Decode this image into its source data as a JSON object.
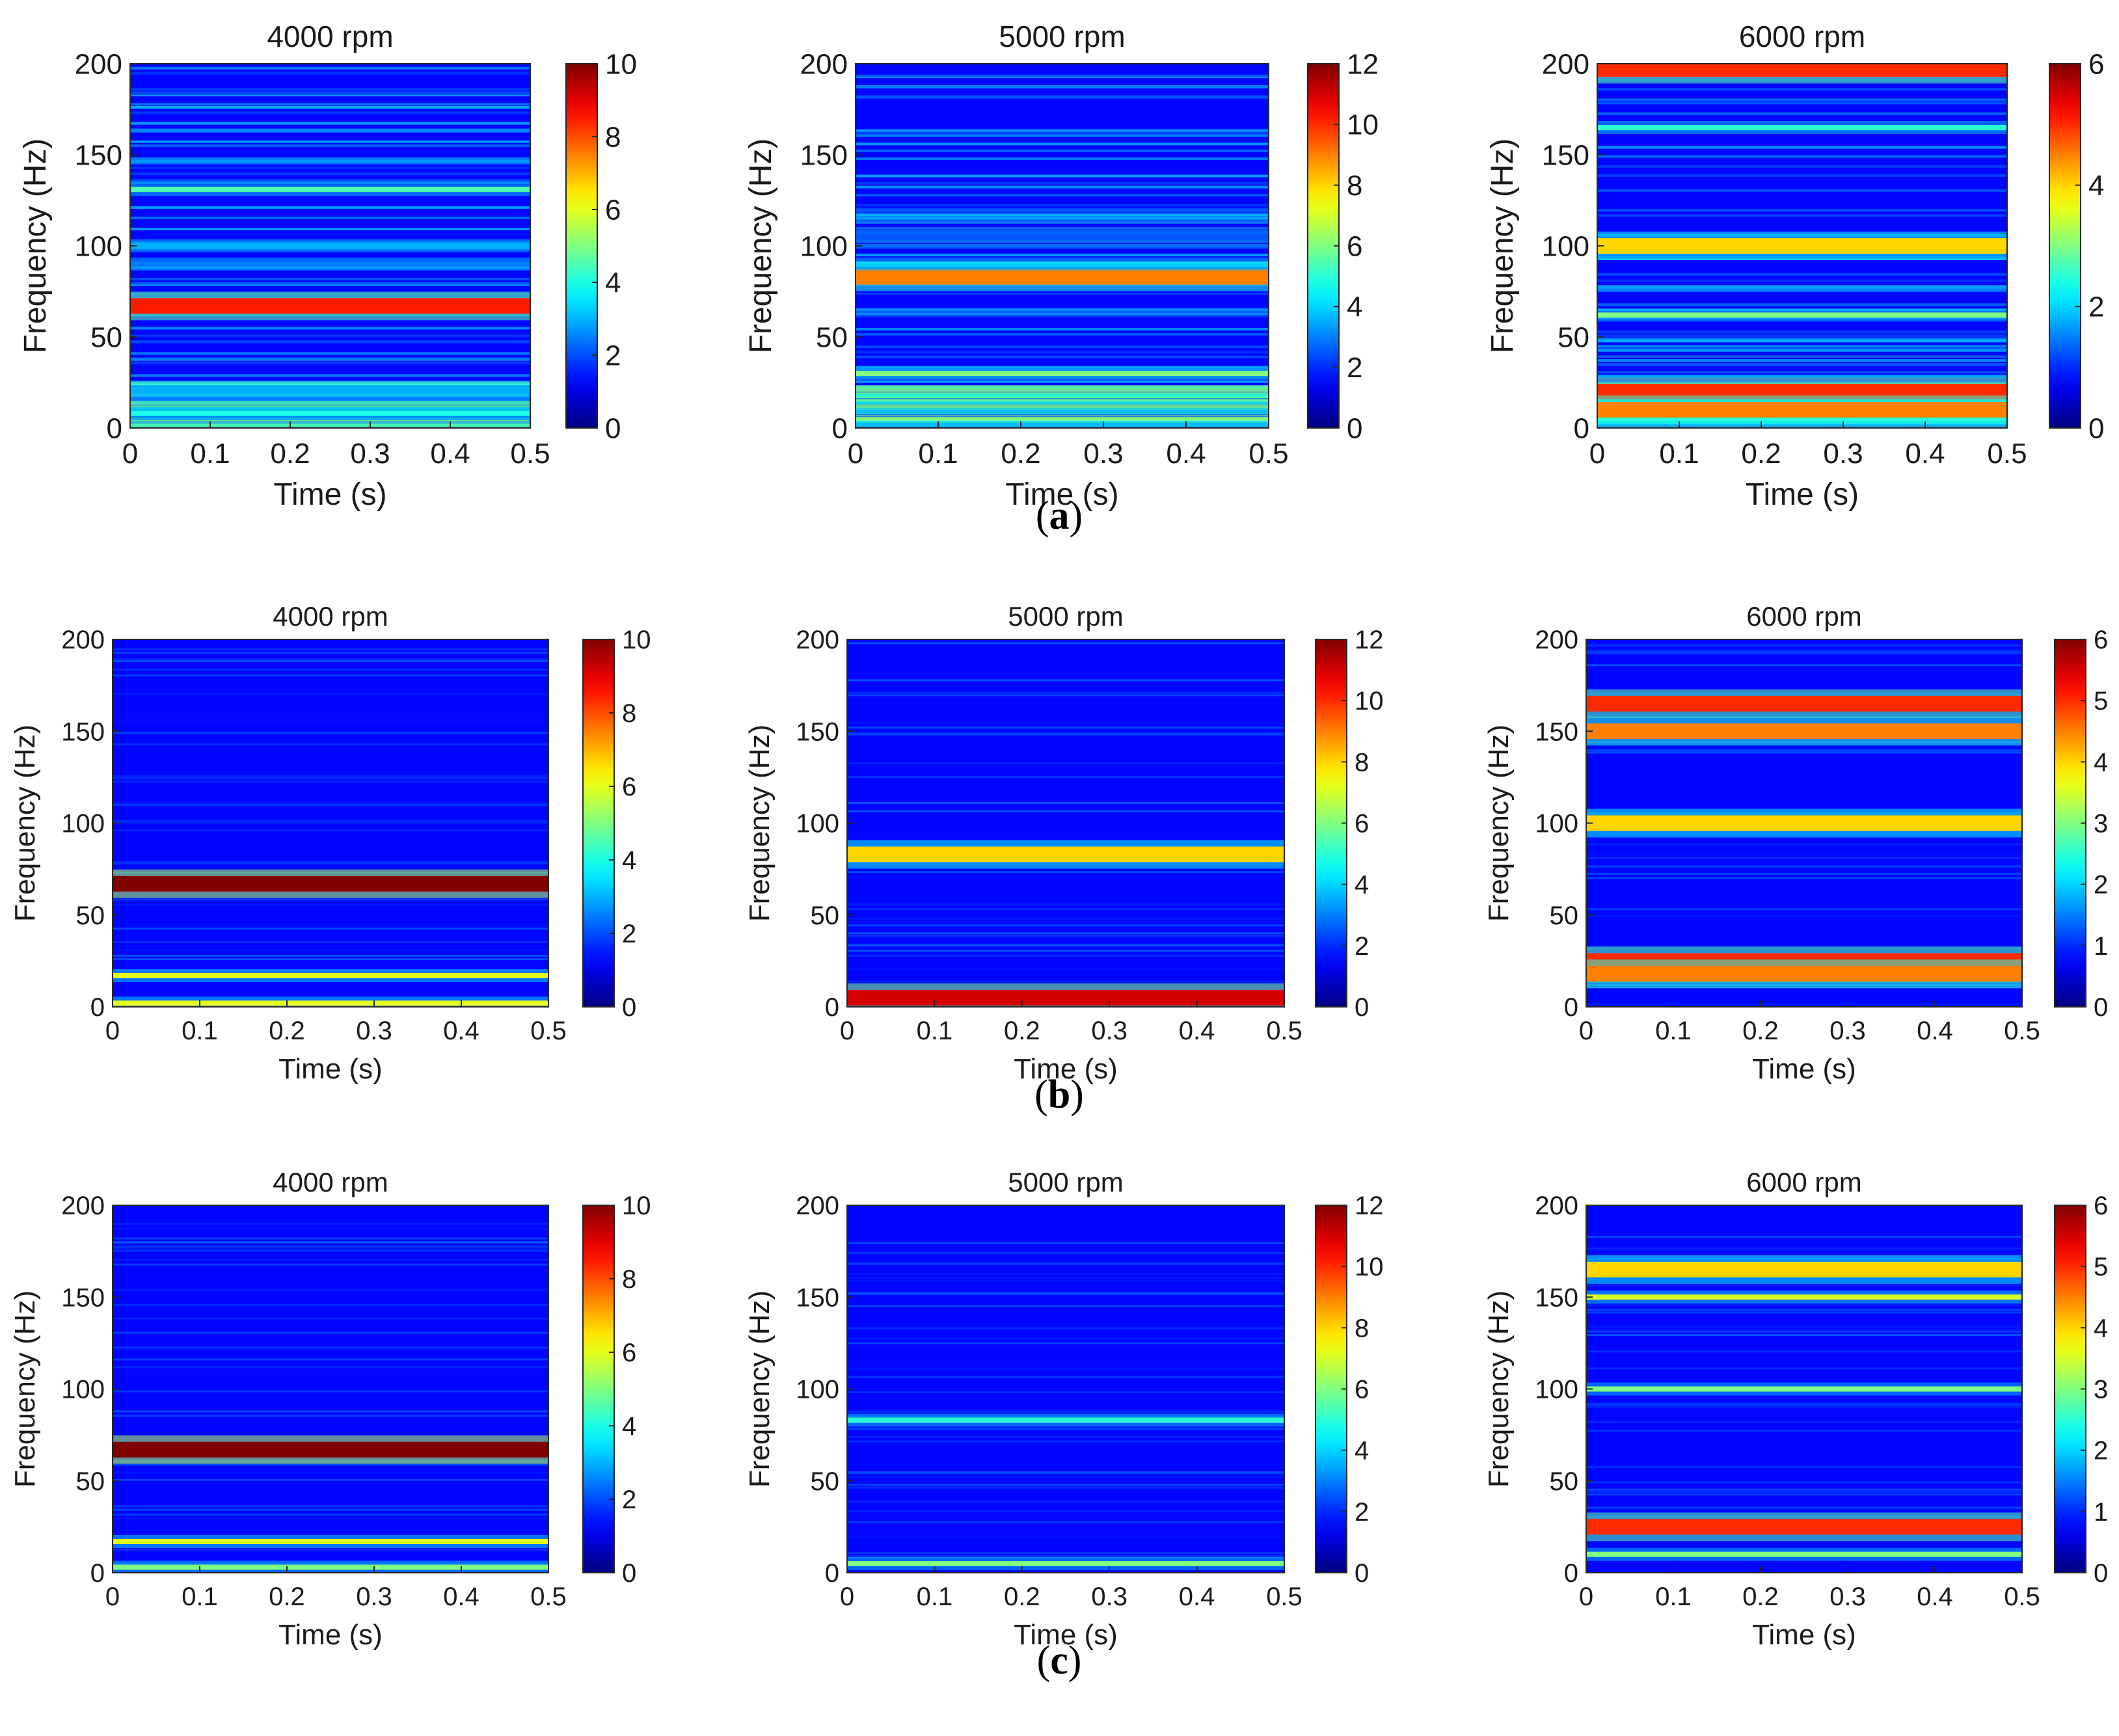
{
  "figure": {
    "rows": [
      {
        "label": "a",
        "panels": [
          {
            "title": "4000 rpm",
            "clim": [
              0,
              10
            ]
          },
          {
            "title": "5000 rpm",
            "clim": [
              0,
              12
            ]
          },
          {
            "title": "6000 rpm",
            "clim": [
              0,
              6
            ]
          }
        ]
      },
      {
        "label": "b",
        "panels": [
          {
            "title": "4000 rpm",
            "clim": [
              0,
              10
            ]
          },
          {
            "title": "5000 rpm",
            "clim": [
              0,
              12
            ]
          },
          {
            "title": "6000 rpm",
            "clim": [
              0,
              6
            ]
          }
        ]
      },
      {
        "label": "c",
        "panels": [
          {
            "title": "4000 rpm",
            "clim": [
              0,
              10
            ]
          },
          {
            "title": "5000 rpm",
            "clim": [
              0,
              12
            ]
          },
          {
            "title": "6000 rpm",
            "clim": [
              0,
              6
            ]
          }
        ]
      }
    ]
  },
  "chart_data": [
    {
      "type": "heatmap",
      "row": "a",
      "title": "4000 rpm",
      "xlabel": "Time (s)",
      "ylabel": "Frequency (Hz)",
      "xlim": [
        0,
        0.5
      ],
      "ylim": [
        0,
        200
      ],
      "xticks": [
        "0",
        "0.1",
        "0.2",
        "0.3",
        "0.4",
        "0.5"
      ],
      "yticks": [
        "0",
        "50",
        "100",
        "150",
        "200"
      ],
      "colorbar_ticks": [
        "0",
        "2",
        "4",
        "6",
        "8",
        "10"
      ],
      "colorbar_range": [
        0,
        10
      ],
      "bands": [
        {
          "freq": 67,
          "intensity": 8.5
        },
        {
          "freq": 131,
          "intensity": 4.5
        },
        {
          "freq": 100,
          "intensity": 3
        },
        {
          "freq": 90,
          "intensity": 2.5
        },
        {
          "freq": 20,
          "intensity": 3
        },
        {
          "freq": 8,
          "intensity": 4
        }
      ]
    },
    {
      "type": "heatmap",
      "row": "a",
      "title": "5000 rpm",
      "xlabel": "Time (s)",
      "ylabel": "Frequency (Hz)",
      "xlim": [
        0,
        0.5
      ],
      "ylim": [
        0,
        200
      ],
      "xticks": [
        "0",
        "0.1",
        "0.2",
        "0.3",
        "0.4",
        "0.5"
      ],
      "yticks": [
        "0",
        "50",
        "100",
        "150",
        "200"
      ],
      "colorbar_ticks": [
        "0",
        "2",
        "4",
        "6",
        "8",
        "10",
        "12"
      ],
      "colorbar_range": [
        0,
        12
      ],
      "bands": [
        {
          "freq": 83,
          "intensity": 9
        },
        {
          "freq": 90,
          "intensity": 4
        },
        {
          "freq": 30,
          "intensity": 6
        },
        {
          "freq": 105,
          "intensity": 2.5
        }
      ]
    },
    {
      "type": "heatmap",
      "row": "a",
      "title": "6000 rpm",
      "xlabel": "Time (s)",
      "ylabel": "Frequency (Hz)",
      "xlim": [
        0,
        0.5
      ],
      "ylim": [
        0,
        200
      ],
      "xticks": [
        "0",
        "0.1",
        "0.2",
        "0.3",
        "0.4",
        "0.5"
      ],
      "yticks": [
        "0",
        "50",
        "100",
        "150",
        "200"
      ],
      "colorbar_ticks": [
        "0",
        "2",
        "4",
        "6"
      ],
      "colorbar_range": [
        0,
        6
      ],
      "bands": [
        {
          "freq": 197,
          "intensity": 5
        },
        {
          "freq": 100,
          "intensity": 4
        },
        {
          "freq": 165,
          "intensity": 2.5
        },
        {
          "freq": 62,
          "intensity": 3
        },
        {
          "freq": 20,
          "intensity": 5
        },
        {
          "freq": 10,
          "intensity": 4.5
        }
      ]
    },
    {
      "type": "heatmap",
      "row": "b",
      "title": "4000 rpm",
      "xlabel": "Time (s)",
      "ylabel": "Frequency (Hz)",
      "xlim": [
        0,
        0.5
      ],
      "ylim": [
        0,
        200
      ],
      "xticks": [
        "0",
        "0.1",
        "0.2",
        "0.3",
        "0.4",
        "0.5"
      ],
      "yticks": [
        "0",
        "50",
        "100",
        "150",
        "200"
      ],
      "colorbar_ticks": [
        "0",
        "2",
        "4",
        "6",
        "8",
        "10"
      ],
      "colorbar_range": [
        0,
        10
      ],
      "bands": [
        {
          "freq": 67,
          "intensity": 10
        },
        {
          "freq": 17,
          "intensity": 6
        },
        {
          "freq": 2,
          "intensity": 6
        }
      ]
    },
    {
      "type": "heatmap",
      "row": "b",
      "title": "5000 rpm",
      "xlabel": "Time (s)",
      "ylabel": "Frequency (Hz)",
      "xlim": [
        0,
        0.5
      ],
      "ylim": [
        0,
        200
      ],
      "xticks": [
        "0",
        "0.1",
        "0.2",
        "0.3",
        "0.4",
        "0.5"
      ],
      "yticks": [
        "0",
        "50",
        "100",
        "150",
        "200"
      ],
      "colorbar_ticks": [
        "0",
        "2",
        "4",
        "6",
        "8",
        "10",
        "12"
      ],
      "colorbar_range": [
        0,
        12
      ],
      "bands": [
        {
          "freq": 83,
          "intensity": 8
        },
        {
          "freq": 5,
          "intensity": 11
        }
      ]
    },
    {
      "type": "heatmap",
      "row": "b",
      "title": "6000 rpm",
      "xlabel": "Time (s)",
      "ylabel": "Frequency (Hz)",
      "xlim": [
        0,
        0.5
      ],
      "ylim": [
        0,
        200
      ],
      "xticks": [
        "0",
        "0.1",
        "0.2",
        "0.3",
        "0.4",
        "0.5"
      ],
      "yticks": [
        "0",
        "50",
        "100",
        "150",
        "200"
      ],
      "colorbar_ticks": [
        "0",
        "1",
        "2",
        "3",
        "4",
        "5",
        "6"
      ],
      "colorbar_range": [
        0,
        6
      ],
      "bands": [
        {
          "freq": 165,
          "intensity": 5
        },
        {
          "freq": 150,
          "intensity": 4.5
        },
        {
          "freq": 100,
          "intensity": 4
        },
        {
          "freq": 25,
          "intensity": 5
        },
        {
          "freq": 18,
          "intensity": 4.5
        }
      ]
    },
    {
      "type": "heatmap",
      "row": "c",
      "title": "4000 rpm",
      "xlabel": "Time (s)",
      "ylabel": "Frequency (Hz)",
      "xlim": [
        0,
        0.5
      ],
      "ylim": [
        0,
        200
      ],
      "xticks": [
        "0",
        "0.1",
        "0.2",
        "0.3",
        "0.4",
        "0.5"
      ],
      "yticks": [
        "0",
        "50",
        "100",
        "150",
        "200"
      ],
      "colorbar_ticks": [
        "0",
        "2",
        "4",
        "6",
        "8",
        "10"
      ],
      "colorbar_range": [
        0,
        10
      ],
      "bands": [
        {
          "freq": 67,
          "intensity": 10
        },
        {
          "freq": 17,
          "intensity": 6
        },
        {
          "freq": 3,
          "intensity": 5
        }
      ]
    },
    {
      "type": "heatmap",
      "row": "c",
      "title": "5000 rpm",
      "xlabel": "Time (s)",
      "ylabel": "Frequency (Hz)",
      "xlim": [
        0,
        0.5
      ],
      "ylim": [
        0,
        200
      ],
      "xticks": [
        "0",
        "0.1",
        "0.2",
        "0.3",
        "0.4",
        "0.5"
      ],
      "yticks": [
        "0",
        "50",
        "100",
        "150",
        "200"
      ],
      "colorbar_ticks": [
        "0",
        "2",
        "4",
        "6",
        "8",
        "10",
        "12"
      ],
      "colorbar_range": [
        0,
        12
      ],
      "bands": [
        {
          "freq": 83,
          "intensity": 5
        },
        {
          "freq": 5,
          "intensity": 6
        }
      ]
    },
    {
      "type": "heatmap",
      "row": "c",
      "title": "6000 rpm",
      "xlabel": "Time (s)",
      "ylabel": "Frequency (Hz)",
      "xlim": [
        0,
        0.5
      ],
      "ylim": [
        0,
        200
      ],
      "xticks": [
        "0",
        "0.1",
        "0.2",
        "0.3",
        "0.4",
        "0.5"
      ],
      "yticks": [
        "0",
        "50",
        "100",
        "150",
        "200"
      ],
      "colorbar_ticks": [
        "0",
        "1",
        "2",
        "3",
        "4",
        "5",
        "6"
      ],
      "colorbar_range": [
        0,
        6
      ],
      "bands": [
        {
          "freq": 165,
          "intensity": 4
        },
        {
          "freq": 150,
          "intensity": 3.5
        },
        {
          "freq": 100,
          "intensity": 3
        },
        {
          "freq": 25,
          "intensity": 5
        },
        {
          "freq": 10,
          "intensity": 3
        }
      ]
    }
  ]
}
